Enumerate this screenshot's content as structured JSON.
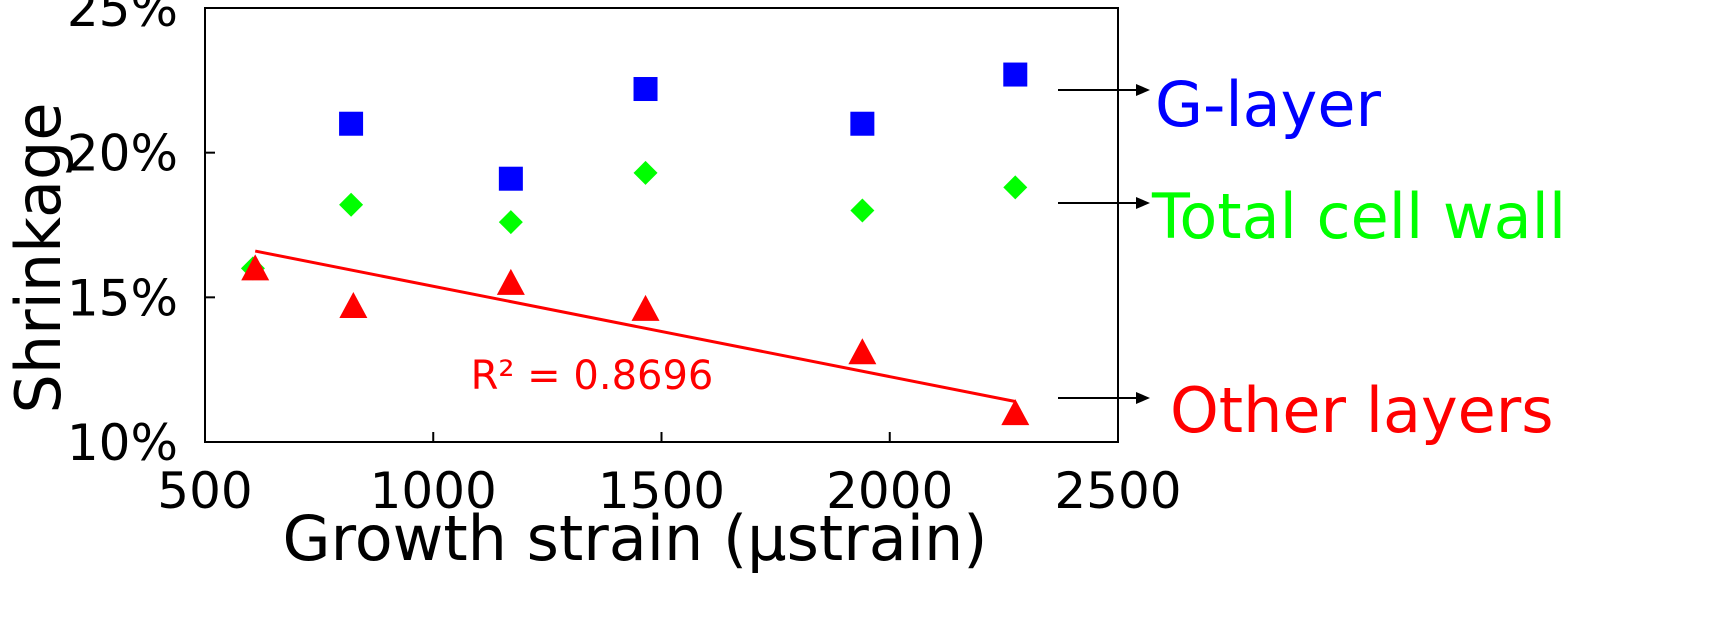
{
  "chart_data": {
    "type": "scatter",
    "xlabel": "Growth strain (µstrain)",
    "ylabel": "Shrinkage",
    "xlim": [
      500,
      2500
    ],
    "ylim": [
      0.1,
      0.25
    ],
    "x_ticks": [
      500,
      1000,
      1500,
      2000,
      2500
    ],
    "x_tick_labels": [
      "500",
      "1000",
      "1500",
      "2000",
      "2500"
    ],
    "y_ticks": [
      0.1,
      0.15,
      0.2,
      0.25
    ],
    "y_tick_labels": [
      "10%",
      "15%",
      "20%",
      "25%"
    ],
    "grid": false,
    "legend_position": "right (arrow labels)",
    "series": [
      {
        "name": "G-layer",
        "marker": "square",
        "color": "#0000ff",
        "points": [
          [
            820,
            0.21
          ],
          [
            1170,
            0.191
          ],
          [
            1465,
            0.222
          ],
          [
            1940,
            0.21
          ],
          [
            2275,
            0.227
          ]
        ]
      },
      {
        "name": "Total cell wall",
        "marker": "diamond",
        "color": "#00ff00",
        "points": [
          [
            605,
            0.16
          ],
          [
            820,
            0.182
          ],
          [
            1170,
            0.176
          ],
          [
            1465,
            0.193
          ],
          [
            1940,
            0.18
          ],
          [
            2275,
            0.188
          ]
        ]
      },
      {
        "name": "Other layers",
        "marker": "triangle",
        "color": "#ff0000",
        "points": [
          [
            610,
            0.16
          ],
          [
            825,
            0.147
          ],
          [
            1170,
            0.155
          ],
          [
            1465,
            0.146
          ],
          [
            1940,
            0.131
          ],
          [
            2275,
            0.11
          ]
        ]
      }
    ],
    "trendline": {
      "series": "Other layers",
      "color": "#ff0000",
      "x": [
        610,
        2275
      ],
      "y": [
        0.166,
        0.114
      ],
      "label": "R² = 0.8696"
    }
  }
}
